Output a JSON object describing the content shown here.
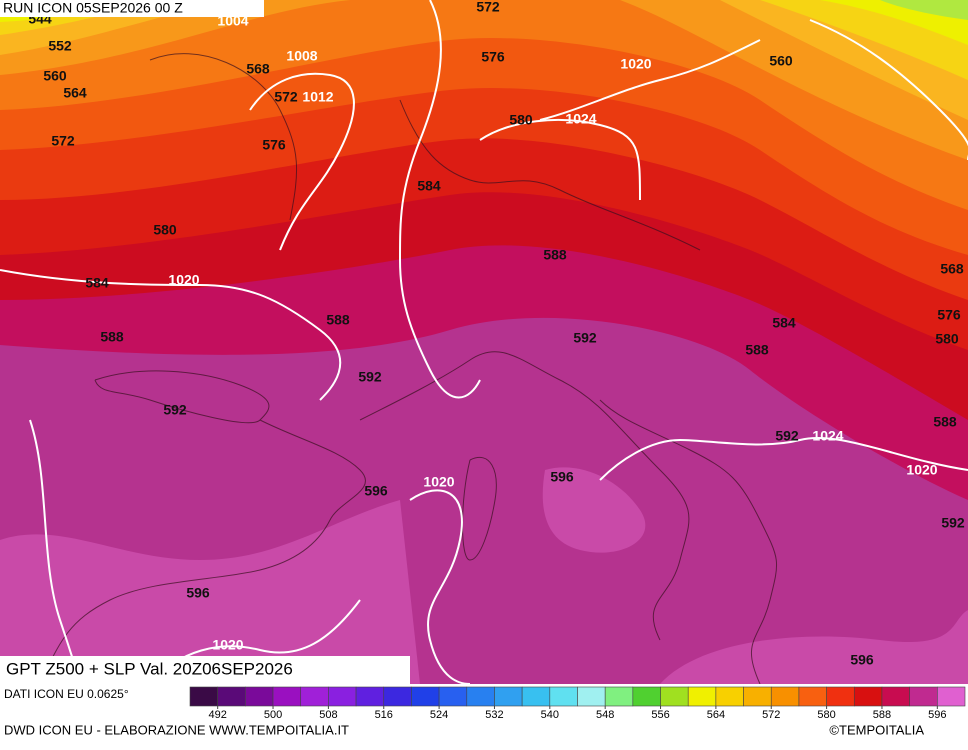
{
  "header": {
    "run": "RUN ICON 05SEP2026 00 Z"
  },
  "map": {
    "z500_labels": [
      544,
      552,
      560,
      564,
      572,
      568,
      572,
      576,
      572,
      576,
      560,
      580,
      584,
      580,
      584,
      588,
      568,
      576,
      580,
      584,
      588,
      588,
      592,
      588,
      592,
      592,
      592,
      588,
      596,
      596,
      592,
      596,
      596
    ],
    "slp_labels": [
      1004,
      1008,
      1012,
      1020,
      1024,
      1020,
      1024,
      1020,
      1020,
      1020
    ]
  },
  "colorbar": {
    "range": [
      488,
      600
    ],
    "ticks": [
      492,
      500,
      508,
      516,
      524,
      532,
      540,
      548,
      556,
      564,
      572,
      580,
      588,
      596
    ],
    "colors": [
      "#3a0a46",
      "#5a0a78",
      "#7a0a9a",
      "#9a10c0",
      "#a020d8",
      "#8a20e0",
      "#6020e0",
      "#3c28e0",
      "#2040e8",
      "#2860f0",
      "#2880f0",
      "#30a0f0",
      "#38c0f0",
      "#60e0f0",
      "#a0f0f0",
      "#80f080",
      "#50d030",
      "#a0e020",
      "#f0f000",
      "#f8d000",
      "#f8b000",
      "#f89000",
      "#f86010",
      "#f03010",
      "#d81010",
      "#c80c50",
      "#c02a90",
      "#e060d0"
    ]
  },
  "footer": {
    "title": "GPT Z500 + SLP Val. 20Z06SEP2026",
    "source": "DATI ICON EU 0.0625°",
    "credit": "DWD ICON EU - ELABORAZIONE WWW.TEMPOITALIA.IT",
    "copyright": "©TEMPOITALIA"
  }
}
